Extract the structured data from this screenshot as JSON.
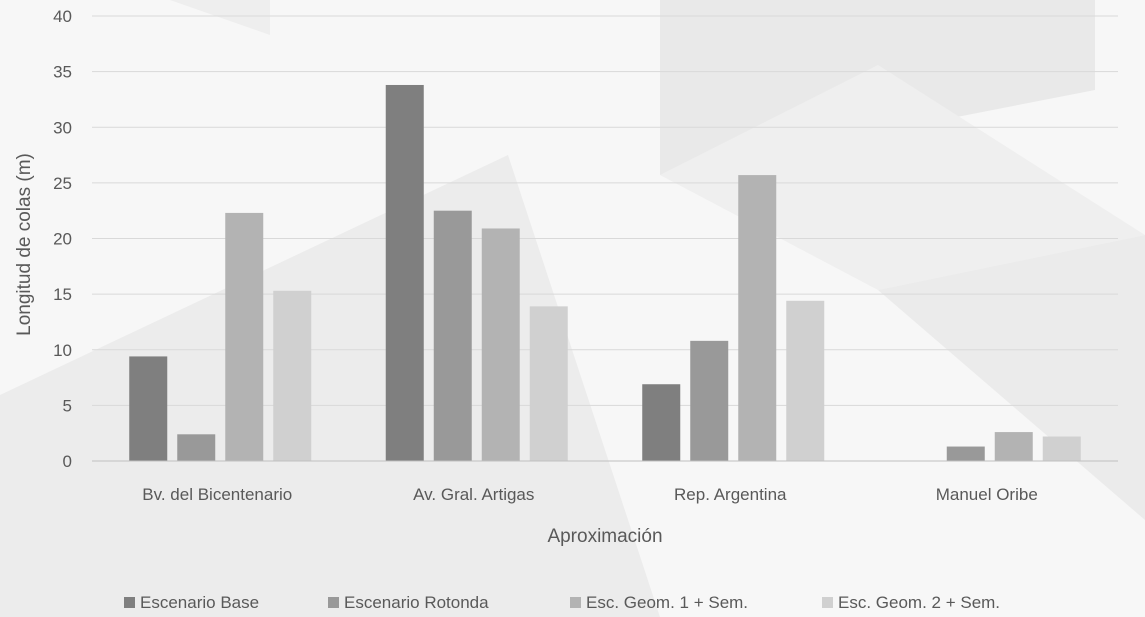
{
  "chart_data": {
    "type": "bar",
    "title": "",
    "xlabel": "Aproximación",
    "ylabel": "Longitud de colas (m)",
    "ylim": [
      0,
      40
    ],
    "yticks": [
      0,
      5,
      10,
      15,
      20,
      25,
      30,
      35,
      40
    ],
    "grid": true,
    "legend_position": "bottom",
    "categories": [
      "Bv. del Bicentenario",
      "Av. Gral. Artigas",
      "Rep. Argentina",
      "Manuel Oribe"
    ],
    "series": [
      {
        "name": "Escenario Base",
        "color": "#7f7f7f",
        "values": [
          9.4,
          33.8,
          6.9,
          0
        ]
      },
      {
        "name": "Escenario Rotonda",
        "color": "#999999",
        "values": [
          2.4,
          22.5,
          10.8,
          1.3
        ]
      },
      {
        "name": "Esc. Geom. 1 + Sem.",
        "color": "#b3b3b3",
        "values": [
          22.3,
          20.9,
          25.7,
          2.6
        ]
      },
      {
        "name": "Esc. Geom. 2 + Sem.",
        "color": "#d0d0d0",
        "values": [
          15.3,
          13.9,
          14.4,
          2.2
        ]
      }
    ]
  }
}
